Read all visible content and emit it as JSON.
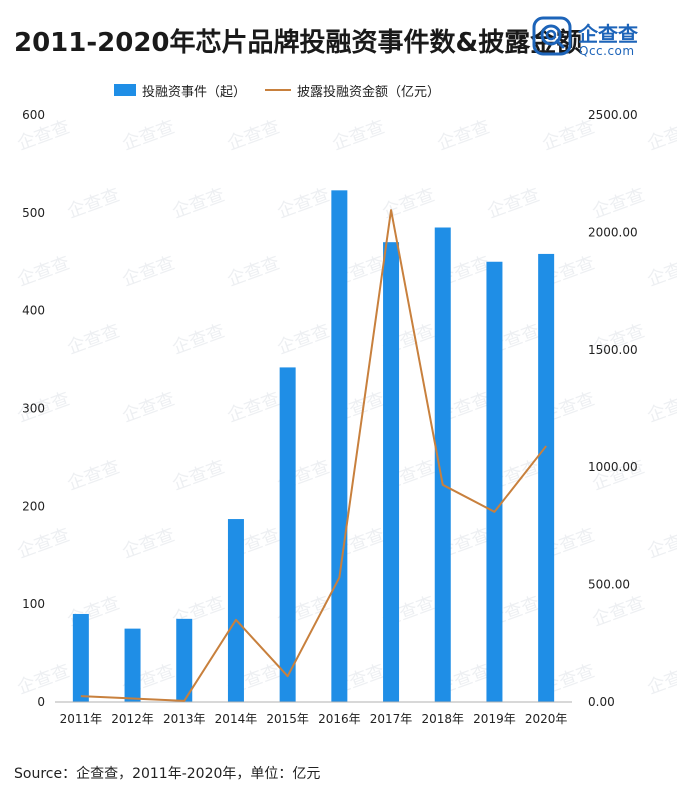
{
  "header": {
    "title": "2011-2020年芯片品牌投融资事件数&披露金额"
  },
  "logo": {
    "name": "企查查",
    "domain": "Qcc.com",
    "icon": "qcc-logo-icon",
    "color": "#1d64b9"
  },
  "footer": {
    "source": "Source：企查查，2011年-2020年，单位：亿元"
  },
  "watermark": "企查查",
  "chart_data": {
    "type": "bar",
    "categories": [
      "2011年",
      "2012年",
      "2013年",
      "2014年",
      "2015年",
      "2016年",
      "2017年",
      "2018年",
      "2019年",
      "2020年"
    ],
    "series": [
      {
        "name": "投融资事件（起）",
        "type": "bar",
        "axis": "left",
        "color": "#1f8ee6",
        "values": [
          90,
          75,
          85,
          187,
          342,
          523,
          470,
          485,
          450,
          458
        ]
      },
      {
        "name": "披露投融资金额（亿元）",
        "type": "line",
        "axis": "right",
        "color": "#c8803d",
        "values": [
          25,
          15,
          5,
          350,
          110,
          530,
          2095,
          925,
          810,
          1090
        ]
      }
    ],
    "y_left": {
      "min": 0,
      "max": 600,
      "ticks": [
        "0",
        "100",
        "200",
        "300",
        "400",
        "500",
        "600"
      ]
    },
    "y_right": {
      "min": 0,
      "max": 2500,
      "ticks": [
        "0.00",
        "500.00",
        "1000.00",
        "1500.00",
        "2000.00",
        "2500.00"
      ]
    },
    "grid": false,
    "legend_position": "top-center"
  }
}
